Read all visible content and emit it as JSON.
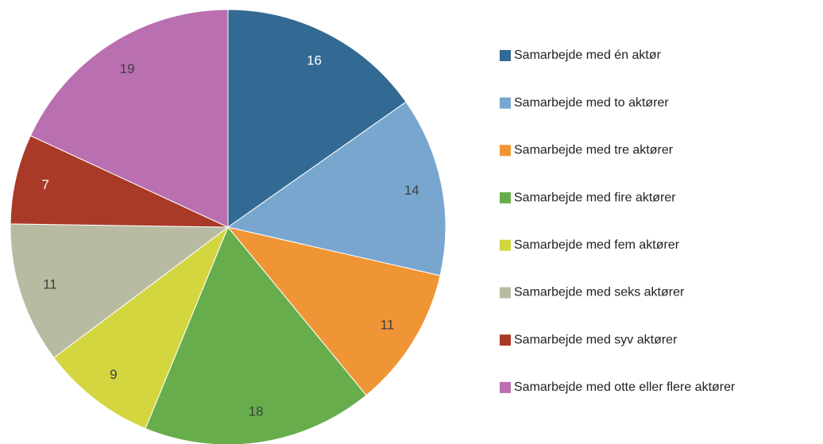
{
  "chart_data": {
    "type": "pie",
    "categories": [
      "Samarbejde med én aktør",
      "Samarbejde med to aktører",
      "Samarbejde med tre aktører",
      "Samarbejde med fire aktører",
      "Samarbejde med fem aktører",
      "Samarbejde med seks aktører",
      "Samarbejde med syv aktører",
      "Samarbejde med otte eller flere aktører"
    ],
    "values": [
      16,
      14,
      11,
      18,
      9,
      11,
      7,
      19
    ],
    "colors": [
      "#336a93",
      "#78a6cf",
      "#f09535",
      "#67ad4c",
      "#d3d63f",
      "#b8bba2",
      "#a93a27",
      "#b96fb0"
    ],
    "legend": "right"
  }
}
